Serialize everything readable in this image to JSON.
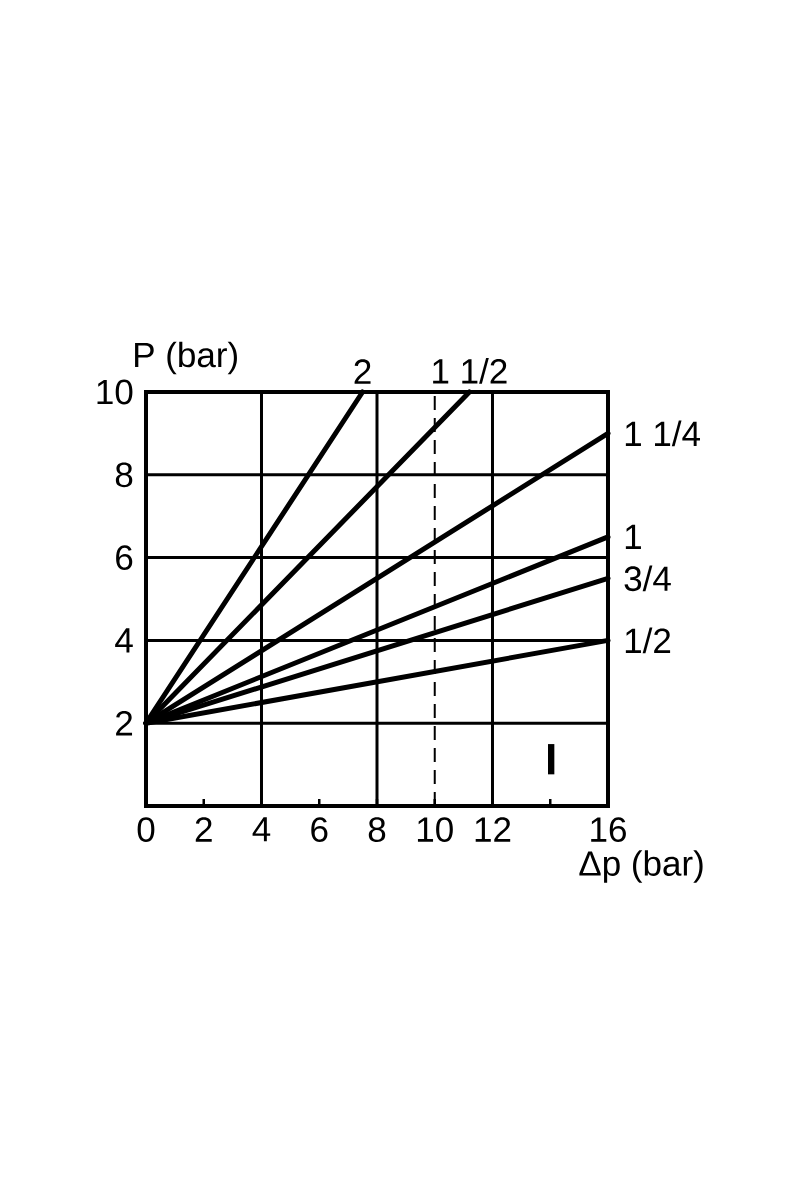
{
  "chart_data": {
    "type": "line",
    "xlabel": "Δp (bar)",
    "ylabel": "P (bar)",
    "xlim": [
      0,
      16
    ],
    "ylim": [
      0,
      10
    ],
    "xticks": [
      0,
      2,
      4,
      6,
      8,
      10,
      12,
      {
        "value": 14,
        "label": null
      },
      16
    ],
    "yticks": [
      2,
      4,
      6,
      8,
      10
    ],
    "grid": "y",
    "legend": false,
    "marker": "none",
    "line_style": "solid",
    "series": [
      {
        "name": "2",
        "color": "#000000",
        "x": [
          0,
          7.5
        ],
        "values": [
          2,
          10
        ]
      },
      {
        "name": "1 1/2",
        "color": "#000000",
        "x": [
          0,
          11.2
        ],
        "values": [
          2,
          10
        ]
      },
      {
        "name": "1 1/4",
        "color": "#000000",
        "x": [
          0,
          16
        ],
        "values": [
          2,
          9
        ]
      },
      {
        "name": "1",
        "color": "#000000",
        "x": [
          0,
          16
        ],
        "values": [
          2,
          6.5
        ]
      },
      {
        "name": "3/4",
        "color": "#000000",
        "x": [
          0,
          16
        ],
        "values": [
          2,
          5.5
        ]
      },
      {
        "name": "1/2",
        "color": "#000000",
        "x": [
          0,
          16
        ],
        "values": [
          2,
          4
        ]
      }
    ],
    "ref_lines": [
      {
        "axis": "x",
        "value": 4,
        "line_style": "solid"
      },
      {
        "axis": "x",
        "value": 8,
        "line_style": "solid"
      },
      {
        "axis": "x",
        "value": 12,
        "line_style": "solid"
      },
      {
        "axis": "x",
        "value": 10,
        "line_style": "dashed"
      }
    ],
    "annotations": [
      "I"
    ]
  }
}
